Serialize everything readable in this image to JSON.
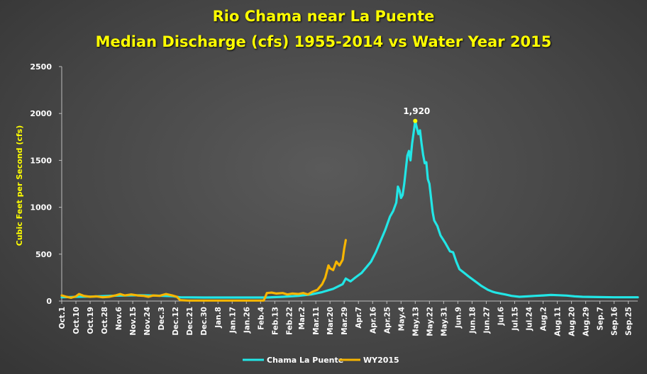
{
  "title": "Rio Chama  near La Puente",
  "subtitle": "Median Discharge (cfs) 1955-2014 vs Water Year 2015",
  "chart_data": {
    "type": "line",
    "title": "Rio Chama  near La Puente",
    "subtitle": "Median Discharge (cfs) 1955-2014 vs Water Year 2015",
    "xlabel": "",
    "ylabel": "Cubic Feet per Second (cfs)",
    "ylim": [
      0,
      2500
    ],
    "yticks": [
      "0",
      "500",
      "1000",
      "1500",
      "2000",
      "2500"
    ],
    "x_tick_labels": [
      "Oct.1",
      "Oct.10",
      "Oct.19",
      "Oct.28",
      "Nov.6",
      "Nov.15",
      "Nov.24",
      "Dec.3",
      "Dec.12",
      "Dec.21",
      "Dec.30",
      "Jan.8",
      "Jan.17",
      "Jan.26",
      "Feb.4",
      "Feb.13",
      "Feb.22",
      "Mar.2",
      "Mar.11",
      "Mar.20",
      "Mar.29",
      "Apr.7",
      "Apr.16",
      "Apr.25",
      "May.4",
      "May.13",
      "May.22",
      "May.31",
      "Jun.9",
      "Jun.18",
      "Jun.27",
      "Jul.6",
      "Jul.15",
      "Jul.24",
      "Aug.2",
      "Aug.11",
      "Aug.20",
      "Aug.29",
      "Sep.7",
      "Sep.16",
      "Sep.25"
    ],
    "x_tick_day_index": [
      0,
      9,
      18,
      27,
      36,
      45,
      54,
      63,
      72,
      81,
      90,
      99,
      108,
      117,
      126,
      135,
      144,
      152,
      161,
      170,
      179,
      188,
      197,
      206,
      215,
      224,
      233,
      242,
      251,
      260,
      269,
      278,
      287,
      296,
      305,
      314,
      323,
      332,
      341,
      350,
      359
    ],
    "x_range": [
      0,
      365
    ],
    "grid": false,
    "legend_position": "bottom",
    "peak_label": {
      "text": "1,920",
      "day_index": 224,
      "value": 1920
    },
    "series": [
      {
        "name": "Chama La Puente",
        "color": "#22e6e6",
        "points": [
          [
            0,
            40
          ],
          [
            10,
            45
          ],
          [
            20,
            48
          ],
          [
            30,
            55
          ],
          [
            40,
            60
          ],
          [
            50,
            62
          ],
          [
            60,
            58
          ],
          [
            70,
            52
          ],
          [
            75,
            40
          ],
          [
            90,
            38
          ],
          [
            110,
            38
          ],
          [
            130,
            38
          ],
          [
            140,
            45
          ],
          [
            150,
            55
          ],
          [
            158,
            70
          ],
          [
            165,
            95
          ],
          [
            172,
            130
          ],
          [
            178,
            180
          ],
          [
            180,
            240
          ],
          [
            183,
            210
          ],
          [
            186,
            250
          ],
          [
            190,
            300
          ],
          [
            193,
            360
          ],
          [
            196,
            420
          ],
          [
            199,
            520
          ],
          [
            202,
            640
          ],
          [
            205,
            760
          ],
          [
            208,
            900
          ],
          [
            210,
            960
          ],
          [
            212,
            1050
          ],
          [
            213,
            1220
          ],
          [
            214,
            1180
          ],
          [
            215,
            1100
          ],
          [
            216,
            1130
          ],
          [
            217,
            1250
          ],
          [
            218,
            1400
          ],
          [
            219,
            1550
          ],
          [
            220,
            1600
          ],
          [
            221,
            1500
          ],
          [
            222,
            1680
          ],
          [
            223,
            1800
          ],
          [
            224,
            1920
          ],
          [
            225,
            1850
          ],
          [
            226,
            1780
          ],
          [
            227,
            1820
          ],
          [
            228,
            1680
          ],
          [
            229,
            1560
          ],
          [
            230,
            1470
          ],
          [
            231,
            1480
          ],
          [
            232,
            1300
          ],
          [
            233,
            1250
          ],
          [
            234,
            1100
          ],
          [
            235,
            950
          ],
          [
            236,
            860
          ],
          [
            238,
            800
          ],
          [
            240,
            700
          ],
          [
            243,
            620
          ],
          [
            246,
            530
          ],
          [
            248,
            520
          ],
          [
            250,
            420
          ],
          [
            252,
            340
          ],
          [
            255,
            300
          ],
          [
            258,
            260
          ],
          [
            262,
            210
          ],
          [
            266,
            160
          ],
          [
            270,
            120
          ],
          [
            273,
            100
          ],
          [
            275,
            90
          ],
          [
            278,
            80
          ],
          [
            281,
            70
          ],
          [
            285,
            55
          ],
          [
            290,
            45
          ],
          [
            295,
            50
          ],
          [
            300,
            55
          ],
          [
            305,
            60
          ],
          [
            310,
            65
          ],
          [
            315,
            62
          ],
          [
            320,
            58
          ],
          [
            325,
            50
          ],
          [
            330,
            45
          ],
          [
            340,
            42
          ],
          [
            350,
            40
          ],
          [
            365,
            40
          ]
        ]
      },
      {
        "name": "WY2015",
        "color": "#f7b500",
        "points": [
          [
            0,
            60
          ],
          [
            3,
            45
          ],
          [
            6,
            35
          ],
          [
            9,
            50
          ],
          [
            11,
            75
          ],
          [
            14,
            55
          ],
          [
            18,
            45
          ],
          [
            22,
            50
          ],
          [
            26,
            40
          ],
          [
            30,
            45
          ],
          [
            34,
            60
          ],
          [
            37,
            75
          ],
          [
            40,
            60
          ],
          [
            44,
            70
          ],
          [
            48,
            60
          ],
          [
            52,
            55
          ],
          [
            55,
            45
          ],
          [
            58,
            60
          ],
          [
            62,
            55
          ],
          [
            66,
            75
          ],
          [
            70,
            60
          ],
          [
            73,
            45
          ],
          [
            75,
            10
          ],
          [
            80,
            5
          ],
          [
            90,
            5
          ],
          [
            100,
            5
          ],
          [
            110,
            5
          ],
          [
            120,
            5
          ],
          [
            128,
            5
          ],
          [
            130,
            85
          ],
          [
            133,
            90
          ],
          [
            136,
            80
          ],
          [
            140,
            85
          ],
          [
            143,
            70
          ],
          [
            146,
            80
          ],
          [
            150,
            75
          ],
          [
            153,
            85
          ],
          [
            156,
            70
          ],
          [
            159,
            100
          ],
          [
            162,
            120
          ],
          [
            165,
            180
          ],
          [
            167,
            250
          ],
          [
            169,
            380
          ],
          [
            170,
            350
          ],
          [
            172,
            330
          ],
          [
            174,
            420
          ],
          [
            176,
            380
          ],
          [
            178,
            440
          ],
          [
            179,
            560
          ],
          [
            180,
            650
          ]
        ]
      }
    ]
  }
}
